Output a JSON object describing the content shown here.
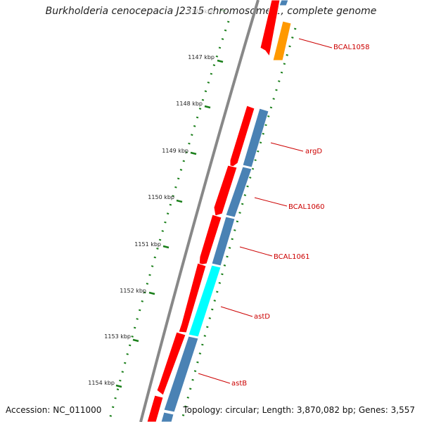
{
  "title": "Burkholderia cenocepacia J2315 chromosome 1, complete genome",
  "footer": {
    "accession": "Accession: NC_011000",
    "topology": "Topology: circular; Length: 3,870,082 bp; Genes: 3,557"
  },
  "ticks": [
    {
      "label": "1146 kbp",
      "faded": true
    },
    {
      "label": "1147 kbp"
    },
    {
      "label": "1148 kbp"
    },
    {
      "label": "1149 kbp"
    },
    {
      "label": "1150 kbp"
    },
    {
      "label": "1151 kbp"
    },
    {
      "label": "1152 kbp"
    },
    {
      "label": "1153 kbp"
    },
    {
      "label": "1154 kbp"
    }
  ],
  "gene_labels": [
    "BCAL1058",
    "argD",
    "BCAL1060",
    "BCAL1061",
    "astD",
    "astB"
  ],
  "colors": {
    "cds_forward": "#ff0000",
    "track_blue": "#4a82b4",
    "track_orange": "#ff9900",
    "track_cyan": "#00ffff",
    "gc_dots": "#1a7f1a",
    "backbone": "#888888",
    "label": "#cc0000"
  }
}
